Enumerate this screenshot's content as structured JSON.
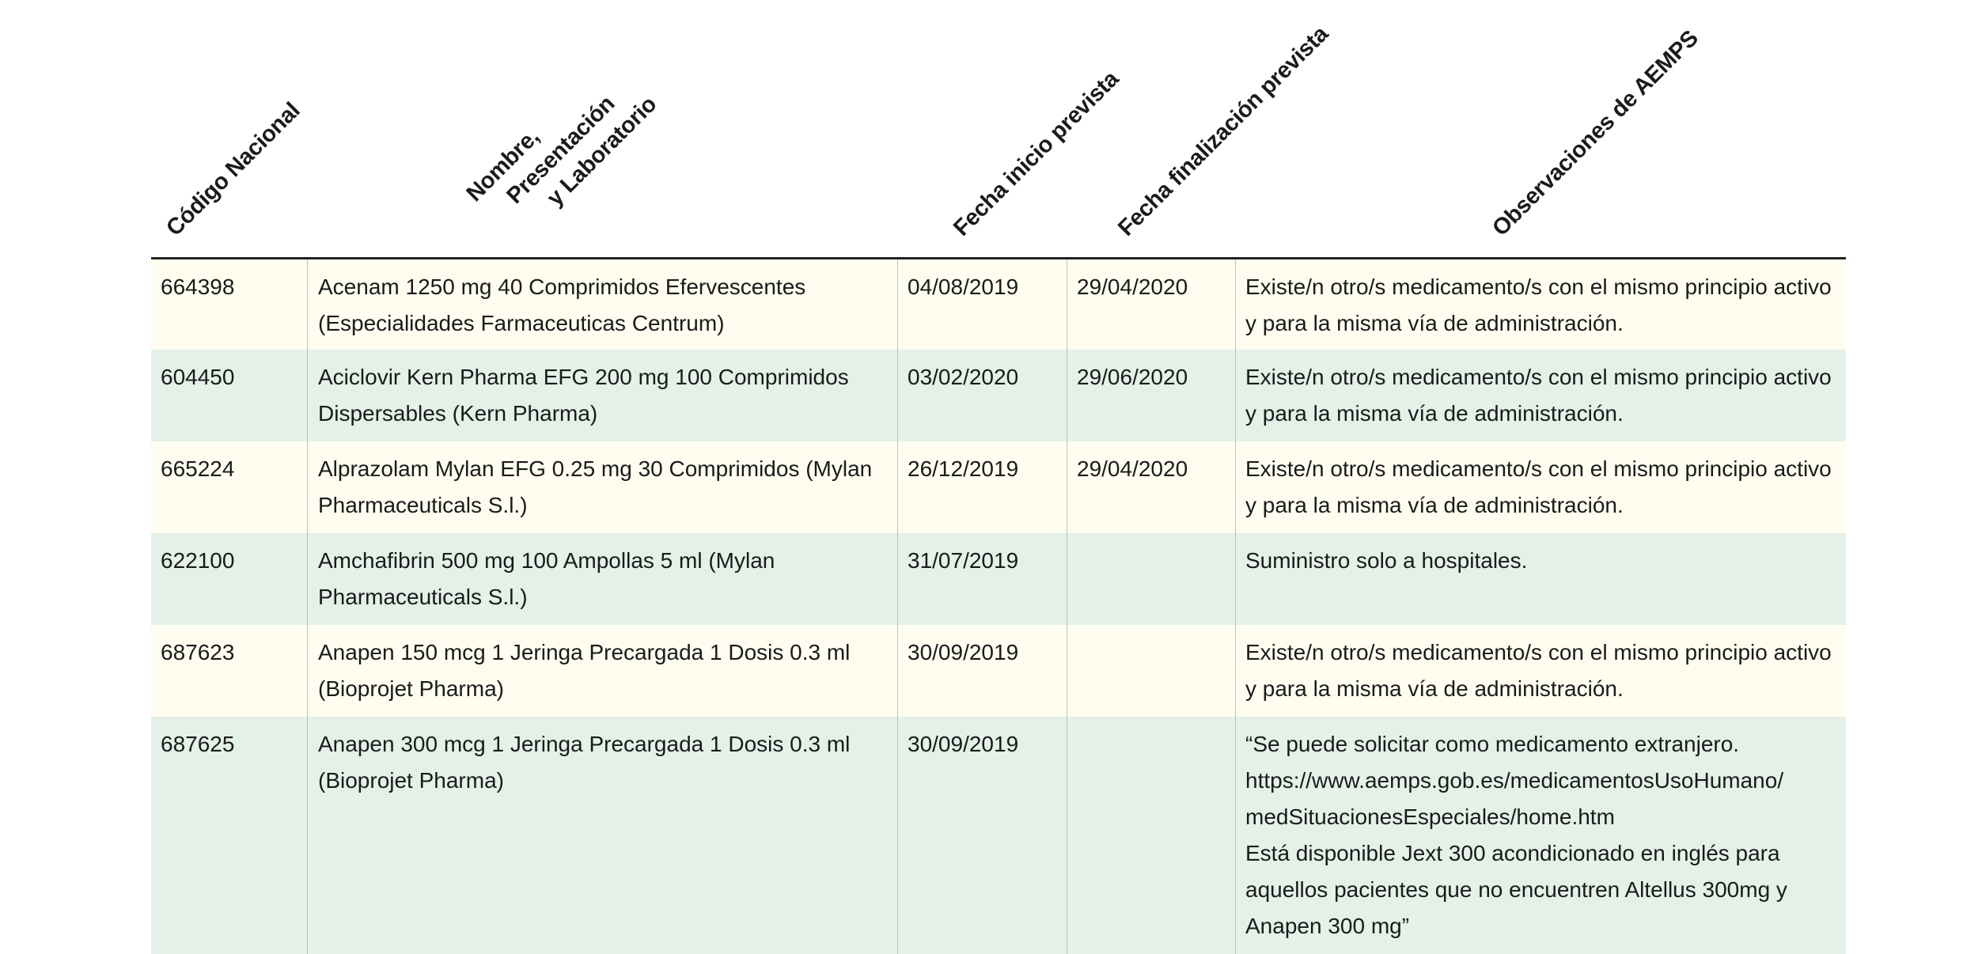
{
  "headers": {
    "codigo": "Código Nacional",
    "nombre_l1": "Nombre,",
    "nombre_l2": "Presentación",
    "nombre_l3": "y Laboratorio",
    "inicio": "Fecha inicio prevista",
    "fin": "Fecha finalización prevista",
    "obs": "Observaciones de AEMPS"
  },
  "rows": [
    {
      "codigo": "664398",
      "nombre": "Acenam 1250 mg 40 Comprimidos Efervescentes\n(Especialidades Farmaceuticas Centrum)",
      "inicio": "04/08/2019",
      "fin": "29/04/2020",
      "obs": "Existe/n otro/s medicamento/s con el mismo principio activo\ny para la misma vía de administración."
    },
    {
      "codigo": "604450",
      "nombre": "Aciclovir Kern Pharma EFG 200 mg 100 Comprimidos\nDispersables (Kern Pharma)",
      "inicio": "03/02/2020",
      "fin": "29/06/2020",
      "obs": "Existe/n otro/s medicamento/s con el mismo principio activo\ny para la misma vía de administración."
    },
    {
      "codigo": "665224",
      "nombre": "Alprazolam Mylan EFG 0.25 mg 30 Comprimidos (Mylan\nPharmaceuticals S.l.)",
      "inicio": "26/12/2019",
      "fin": "29/04/2020",
      "obs": "Existe/n otro/s medicamento/s con el mismo principio activo\ny para la misma vía de administración."
    },
    {
      "codigo": "622100",
      "nombre": "Amchafibrin 500 mg 100 Ampollas 5 ml (Mylan\nPharmaceuticals S.l.)",
      "inicio": "31/07/2019",
      "fin": "",
      "obs": "Suministro solo a hospitales."
    },
    {
      "codigo": "687623",
      "nombre": "Anapen 150 mcg 1 Jeringa Precargada 1 Dosis 0.3 ml\n(Bioprojet Pharma)",
      "inicio": "30/09/2019",
      "fin": "",
      "obs": "Existe/n otro/s medicamento/s con el mismo principio activo\ny para la misma vía de administración."
    },
    {
      "codigo": "687625",
      "nombre": "Anapen 300 mcg 1 Jeringa Precargada 1 Dosis 0.3 ml\n(Bioprojet Pharma)",
      "inicio": "30/09/2019",
      "fin": "",
      "obs": "“Se puede solicitar como medicamento extranjero.\nhttps://www.aemps.gob.es/medicamentosUsoHumano/\nmedSituacionesEspeciales/home.htm\nEstá disponible Jext 300 acondicionado en inglés para\naquellos pacientes que no encuentren  Altellus 300mg y\nAnapen 300 mg”"
    }
  ]
}
